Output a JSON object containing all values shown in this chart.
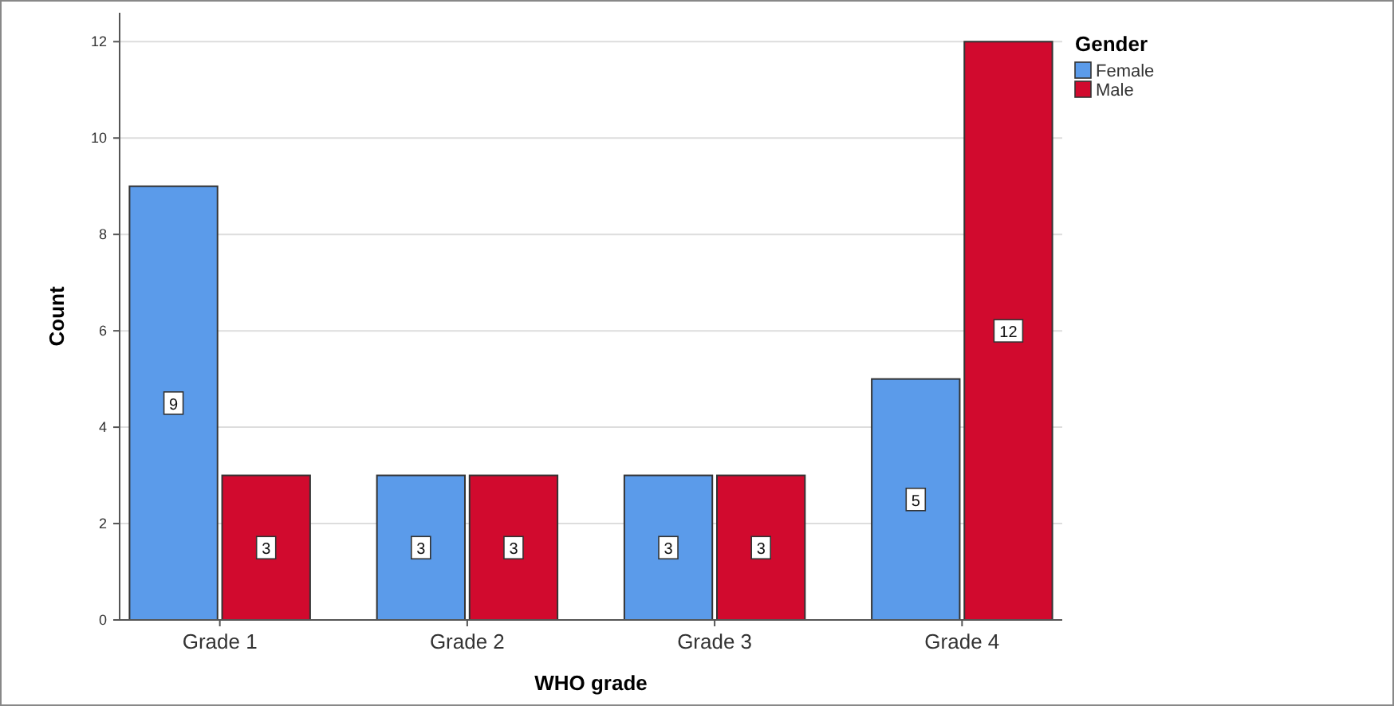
{
  "chart_data": {
    "type": "bar",
    "xlabel": "WHO grade",
    "ylabel": "Count",
    "legend_title": "Gender",
    "categories": [
      "Grade 1",
      "Grade 2",
      "Grade 3",
      "Grade 4"
    ],
    "series": [
      {
        "name": "Female",
        "color": "#5b9bea",
        "values": [
          9,
          3,
          3,
          5
        ]
      },
      {
        "name": "Male",
        "color": "#d10a2e",
        "values": [
          3,
          3,
          3,
          12
        ]
      }
    ],
    "ylim": [
      0,
      12.6
    ],
    "yticks": [
      0,
      2,
      4,
      6,
      8,
      10,
      12
    ],
    "grid": "y",
    "legend": "top right",
    "data_labels": true
  }
}
